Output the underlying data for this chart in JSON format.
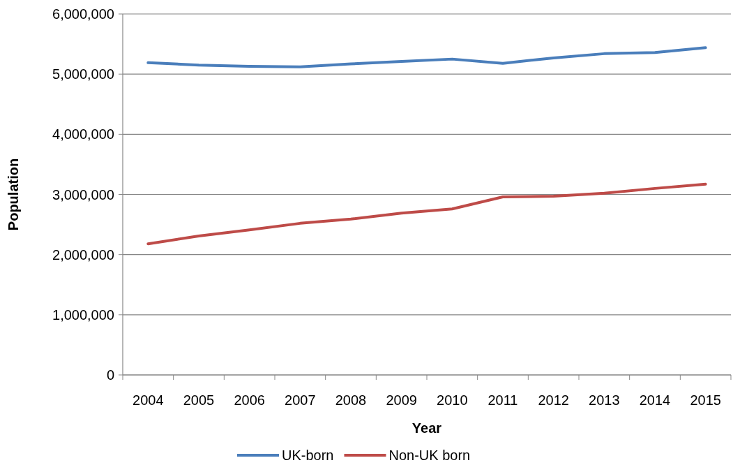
{
  "chart_data": {
    "type": "line",
    "xlabel": "Year",
    "ylabel": "Population",
    "categories": [
      "2004",
      "2005",
      "2006",
      "2007",
      "2008",
      "2009",
      "2010",
      "2011",
      "2012",
      "2013",
      "2014",
      "2015"
    ],
    "series": [
      {
        "name": "UK-born",
        "color": "#4a7ebb",
        "values": [
          5190000,
          5150000,
          5130000,
          5120000,
          5170000,
          5210000,
          5250000,
          5180000,
          5270000,
          5340000,
          5360000,
          5440000
        ]
      },
      {
        "name": "Non-UK born",
        "color": "#be4b48",
        "values": [
          2180000,
          2310000,
          2410000,
          2520000,
          2590000,
          2690000,
          2760000,
          2960000,
          2970000,
          3020000,
          3100000,
          3170000
        ]
      }
    ],
    "ylim": [
      0,
      6000000
    ],
    "yticks": [
      {
        "value": 0,
        "label": "0"
      },
      {
        "value": 1000000,
        "label": "1,000,000"
      },
      {
        "value": 2000000,
        "label": "2,000,000"
      },
      {
        "value": 3000000,
        "label": "3,000,000"
      },
      {
        "value": 4000000,
        "label": "4,000,000"
      },
      {
        "value": 5000000,
        "label": "5,000,000"
      },
      {
        "value": 6000000,
        "label": "6,000,000"
      }
    ],
    "grid": "y",
    "legend": "bottom",
    "marker": "none",
    "line_style": "solid"
  }
}
